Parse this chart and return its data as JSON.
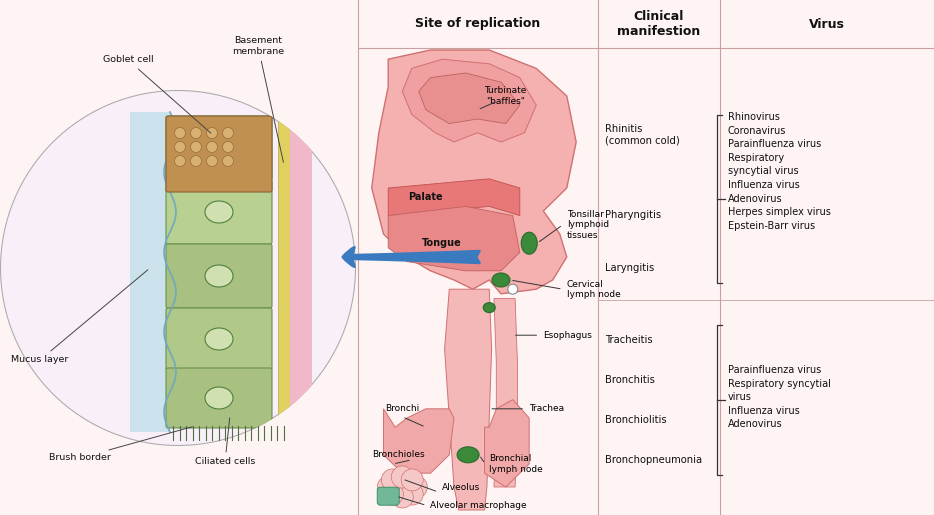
{
  "bg_color": "#fef4f4",
  "panel_bg": "#fae8e8",
  "header_bg": "#e8b0b0",
  "pink_light": "#f5c0c0",
  "pink_body": "#f0a0a0",
  "pink_dark": "#d87070",
  "pink_mid": "#e89090",
  "green_dark": "#2a6a2a",
  "green_med": "#3a8a3a",
  "teal_green": "#6aaa80",
  "blue_arrow": "#3a7abf",
  "blue_arrow_light": "#7aaad8",
  "yellow_bm": "#e8d860",
  "pink_ct": "#f0b0c0",
  "cell_green": "#b0c890",
  "cell_green2": "#a8c088",
  "cell_nucleus": "#c0d0a0",
  "goblet_tan": "#c09050",
  "goblet_gran": "#d8a860",
  "mucus_blue": "#90c0d0",
  "header_text": "#111111",
  "body_text": "#111111",
  "col1_header": "Site of replication",
  "col2_header": "Clinical\nmanifestion",
  "col3_header": "Virus",
  "line_color": "#c09090",
  "divider_color": "#c8a0a0"
}
